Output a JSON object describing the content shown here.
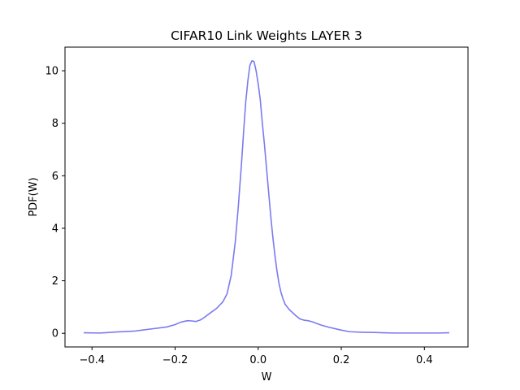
{
  "chart_data": {
    "type": "line",
    "title": "CIFAR10 Link Weights LAYER 3",
    "xlabel": "W",
    "ylabel": "PDF(W)",
    "xlim": [
      -0.465,
      0.505
    ],
    "ylim": [
      -0.52,
      10.9
    ],
    "xticks": [
      -0.4,
      -0.2,
      0.0,
      0.2,
      0.4
    ],
    "xtick_labels": [
      "−0.4",
      "−0.2",
      "0.0",
      "0.2",
      "0.4"
    ],
    "yticks": [
      0,
      2,
      4,
      6,
      8,
      10
    ],
    "ytick_labels": [
      "0",
      "2",
      "4",
      "6",
      "8",
      "10"
    ],
    "grid": false,
    "series": [
      {
        "color": "#7b7bf0",
        "x": [
          -0.42,
          -0.38,
          -0.34,
          -0.3,
          -0.28,
          -0.25,
          -0.22,
          -0.2,
          -0.185,
          -0.17,
          -0.16,
          -0.15,
          -0.14,
          -0.13,
          -0.12,
          -0.1,
          -0.085,
          -0.075,
          -0.065,
          -0.055,
          -0.048,
          -0.04,
          -0.035,
          -0.03,
          -0.025,
          -0.02,
          -0.015,
          -0.01,
          -0.005,
          0.0,
          0.005,
          0.01,
          0.015,
          0.02,
          0.025,
          0.03,
          0.035,
          0.04,
          0.045,
          0.05,
          0.055,
          0.06,
          0.065,
          0.075,
          0.09,
          0.1,
          0.11,
          0.12,
          0.13,
          0.15,
          0.17,
          0.2,
          0.22,
          0.25,
          0.28,
          0.3,
          0.33,
          0.36,
          0.4,
          0.43,
          0.46
        ],
        "y": [
          0.02,
          0.01,
          0.05,
          0.08,
          0.12,
          0.18,
          0.24,
          0.33,
          0.43,
          0.48,
          0.47,
          0.45,
          0.5,
          0.6,
          0.72,
          0.95,
          1.2,
          1.5,
          2.2,
          3.5,
          4.8,
          6.5,
          7.7,
          8.8,
          9.6,
          10.2,
          10.38,
          10.35,
          10.0,
          9.5,
          8.9,
          8.0,
          7.2,
          6.3,
          5.4,
          4.5,
          3.7,
          3.0,
          2.4,
          1.9,
          1.55,
          1.3,
          1.1,
          0.9,
          0.68,
          0.55,
          0.5,
          0.48,
          0.44,
          0.32,
          0.23,
          0.12,
          0.06,
          0.04,
          0.03,
          0.02,
          0.01,
          0.01,
          0.01,
          0.01,
          0.02
        ]
      }
    ]
  }
}
